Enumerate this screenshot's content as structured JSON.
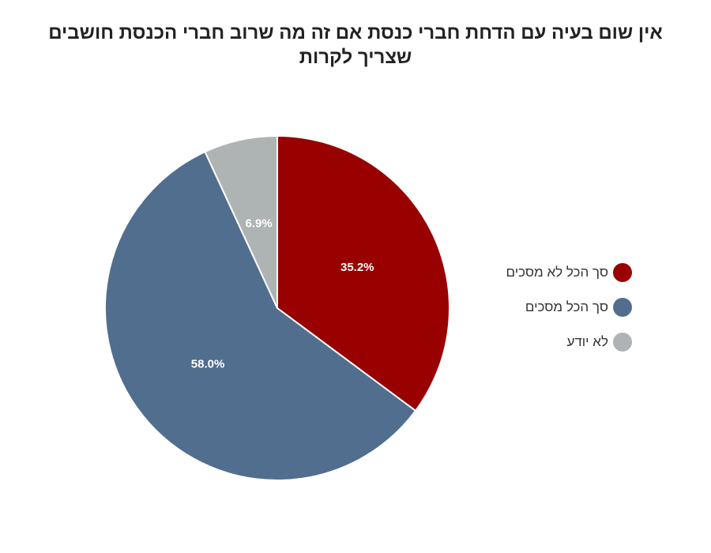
{
  "chart_data": {
    "type": "pie",
    "title": "אין שום בעיה עם הדחת חברי כנסת אם זה מה שרוב חברי הכנסת חושבים שצריך לקרות",
    "slices": [
      {
        "label": "סך הכל לא מסכים",
        "value": 35.2,
        "value_label": "35.2%",
        "color": "#990000"
      },
      {
        "label": "סך הכל מסכים",
        "value": 58.0,
        "value_label": "58.0%",
        "color": "#516e8e"
      },
      {
        "label": "לא יודע",
        "value": 6.9,
        "value_label": "6.9%",
        "color": "#aeb3b3"
      }
    ],
    "start": "12 o'clock",
    "direction": "clockwise",
    "legend_position": "right"
  }
}
